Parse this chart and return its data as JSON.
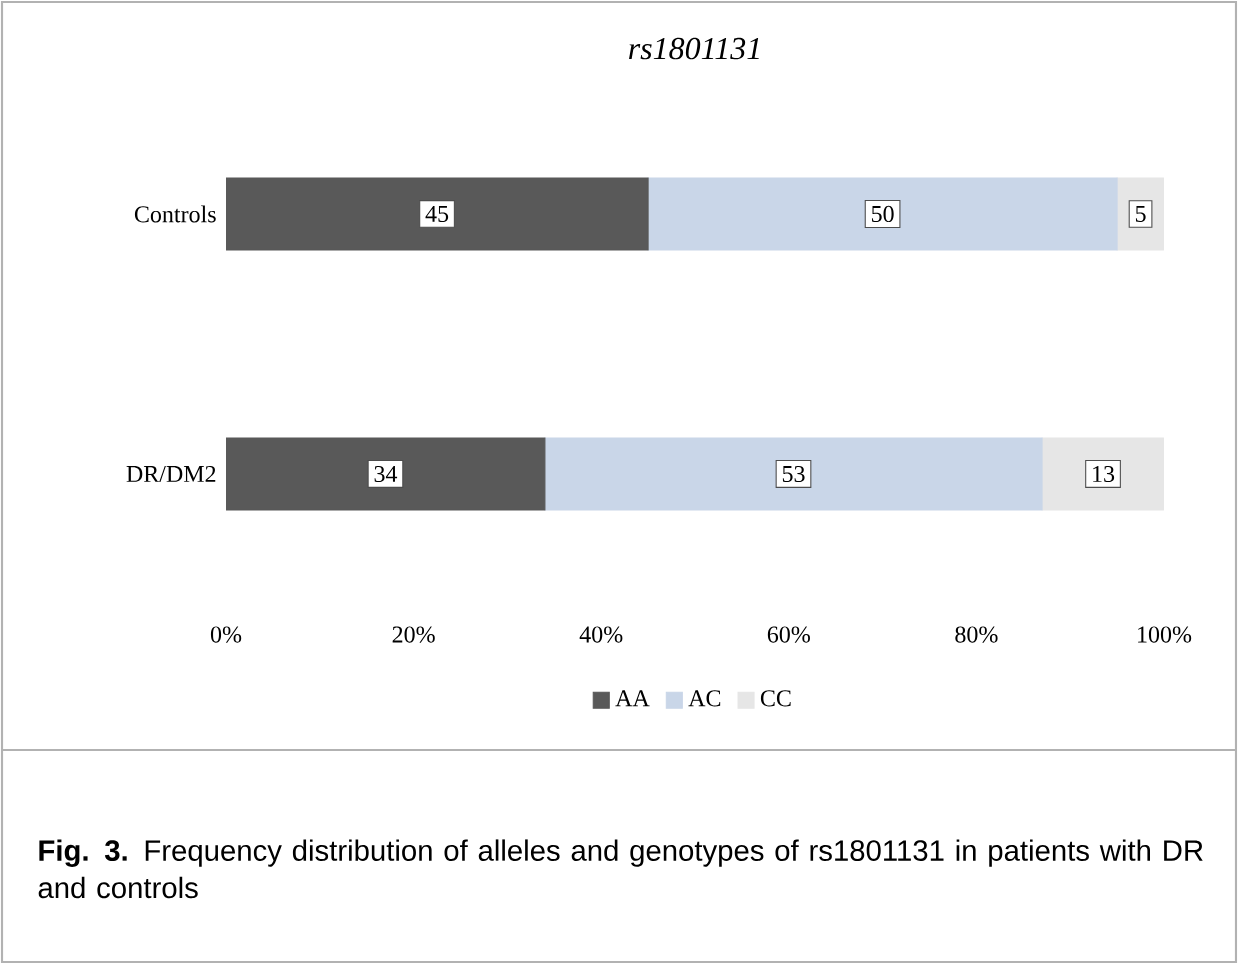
{
  "chart_data": {
    "type": "bar",
    "orientation": "horizontal",
    "stacked": true,
    "title": "rs1801131",
    "categories": [
      "Controls",
      "DR/DM2"
    ],
    "series": [
      {
        "name": "AA",
        "color": "#595959",
        "values": [
          45,
          34
        ],
        "value_labels": [
          "45",
          "34"
        ]
      },
      {
        "name": "AC",
        "color": "#c9d6e8",
        "values": [
          50,
          53
        ],
        "value_labels": [
          "50",
          "53"
        ]
      },
      {
        "name": "CC",
        "color": "#e6e6e6",
        "values": [
          5,
          13
        ],
        "value_labels": [
          "5",
          "13"
        ]
      }
    ],
    "xlim": [
      0,
      100
    ],
    "xticks": [
      {
        "value": 0,
        "label": "0%"
      },
      {
        "value": 20,
        "label": "20%"
      },
      {
        "value": 40,
        "label": "40%"
      },
      {
        "value": 60,
        "label": "60%"
      },
      {
        "value": 80,
        "label": "80%"
      },
      {
        "value": 100,
        "label": "100%"
      }
    ],
    "legend": "bottom",
    "data_labels": true,
    "annotations": [
      "**Fig. 3.** Frequency distribution of alleles and genotypes of rs1801131 in patients with DR and controls"
    ]
  }
}
